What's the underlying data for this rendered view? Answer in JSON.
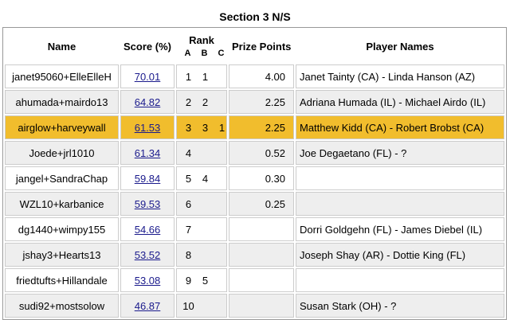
{
  "title": "Section 3 N/S",
  "columns": {
    "name": "Name",
    "score": "Score (%)",
    "rank": "Rank",
    "rank_sub": [
      "A",
      "B",
      "C"
    ],
    "prize": "Prize Points",
    "players": "Player Names"
  },
  "highlight_row": 2,
  "rows": [
    {
      "name": "janet95060+ElleElleH",
      "score": "70.01",
      "rank": [
        "1",
        "1"
      ],
      "prize": "4.00",
      "players": "Janet Tainty (CA) - Linda Hanson (AZ)"
    },
    {
      "name": "ahumada+mairdo13",
      "score": "64.82",
      "rank": [
        "2",
        "2"
      ],
      "prize": "2.25",
      "players": "Adriana Humada (IL) - Michael Airdo (IL)"
    },
    {
      "name": "airglow+harveywall",
      "score": "61.53",
      "rank": [
        "3",
        "3",
        "1"
      ],
      "prize": "2.25",
      "players": "Matthew Kidd (CA) - Robert Brobst (CA)"
    },
    {
      "name": "Joede+jrl1010",
      "score": "61.34",
      "rank": [
        "4"
      ],
      "prize": "0.52",
      "players": "Joe Degaetano (FL) - ?"
    },
    {
      "name": "jangel+SandraChap",
      "score": "59.84",
      "rank": [
        "5",
        "4"
      ],
      "prize": "0.30"
    },
    {
      "name": "WZL10+karbanice",
      "score": "59.53",
      "rank": [
        "6"
      ],
      "prize": "0.25"
    },
    {
      "name": "dg1440+wimpy155",
      "score": "54.66",
      "rank": [
        "7"
      ],
      "players": "Dorri Goldgehn (FL) - James Diebel (IL)"
    },
    {
      "name": "jshay3+Hearts13",
      "score": "53.52",
      "rank": [
        "8"
      ],
      "players": "Joseph Shay (AR) - Dottie King (FL)"
    },
    {
      "name": "friedtufts+Hillandale",
      "score": "53.08",
      "rank": [
        "9",
        "5"
      ]
    },
    {
      "name": "sudi92+mostsolow",
      "score": "46.87",
      "rank": [
        "10"
      ],
      "players": "Susan Stark (OH) - ?"
    }
  ]
}
